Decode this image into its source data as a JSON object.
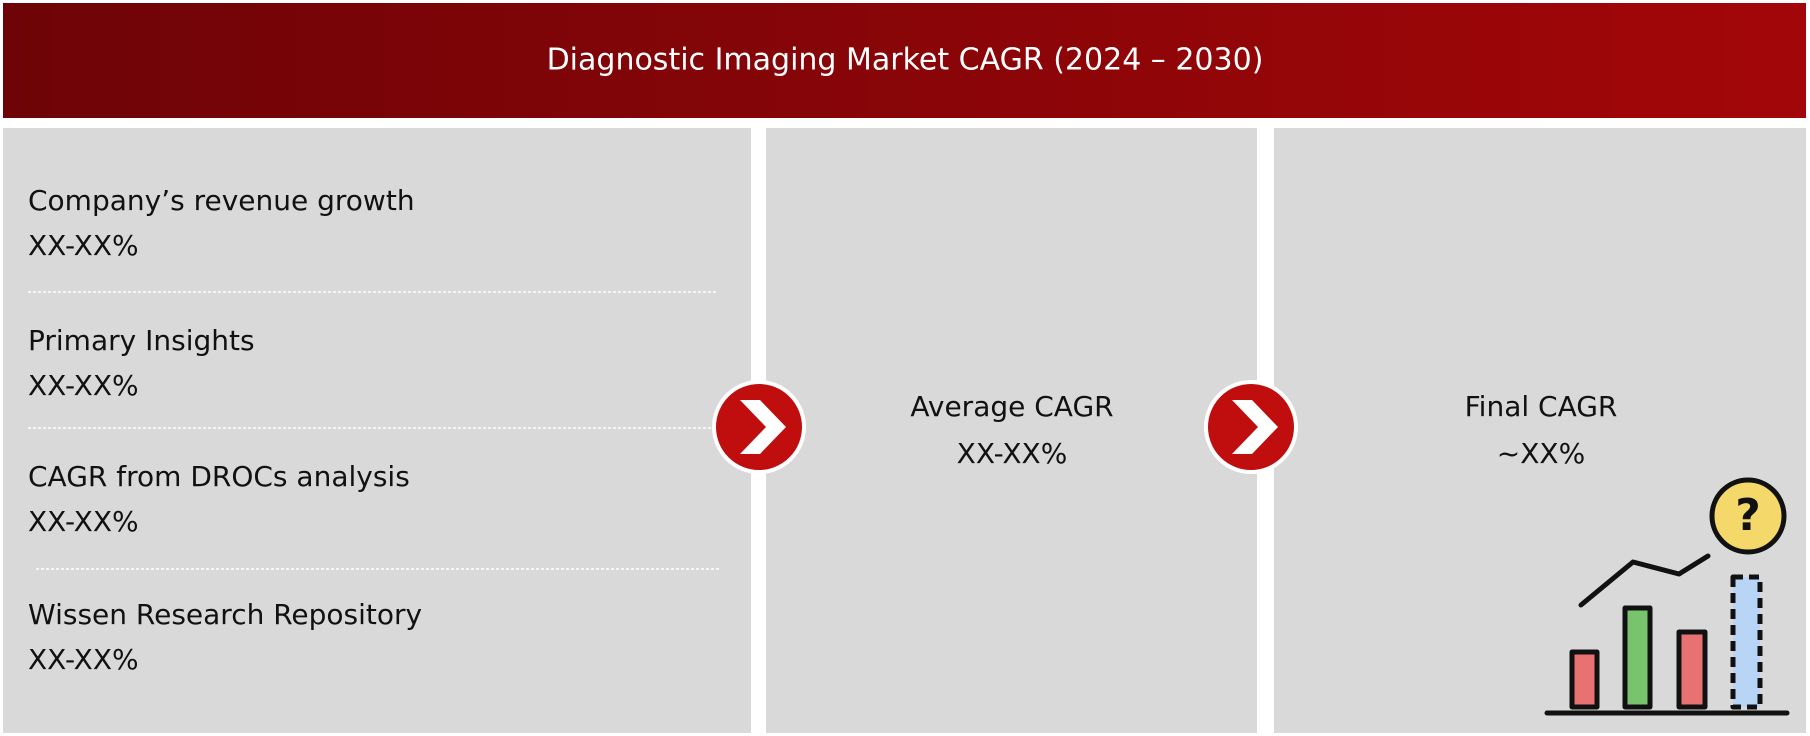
{
  "header": {
    "title": "Diagnostic Imaging Market CAGR (2024 – 2030)"
  },
  "sources": [
    {
      "label": "Company’s revenue growth",
      "value": "XX-XX%"
    },
    {
      "label": "Primary Insights",
      "value": "XX-XX%"
    },
    {
      "label": "CAGR from DROCs analysis",
      "value": "XX-XX%"
    },
    {
      "label": "Wissen Research Repository",
      "value": "XX-XX%"
    }
  ],
  "average": {
    "label": "Average CAGR",
    "value": "XX-XX%"
  },
  "final": {
    "label": "Final CAGR",
    "value": "~XX%"
  },
  "icon": {
    "symbol": "?"
  }
}
